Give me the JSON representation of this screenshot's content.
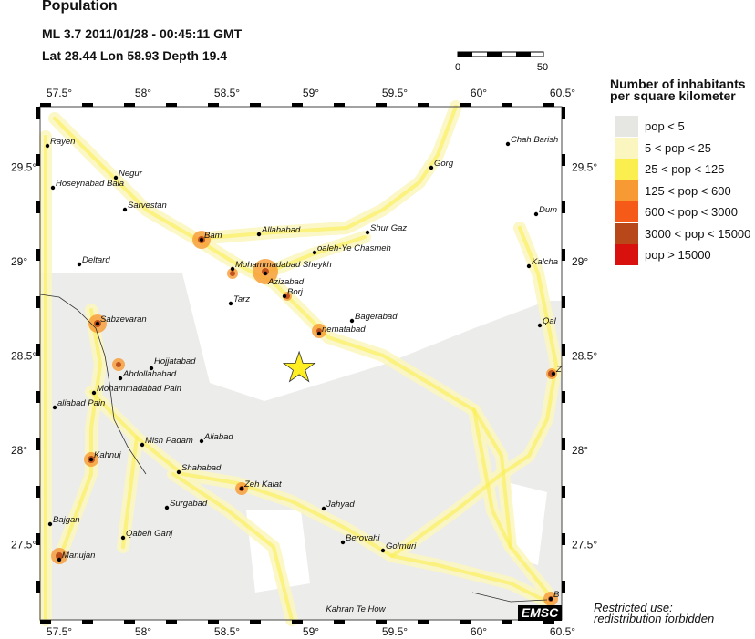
{
  "header": {
    "title": "Population",
    "event_line": "ML 3.7  2011/01/28 - 00:45:11 GMT",
    "location_line": "Lat 28.44    Lon  58.93    Depth  19.4"
  },
  "scale_bar": {
    "min_label": "0",
    "max_label": "50"
  },
  "axes": {
    "lon_labels": [
      "57.5°",
      "58°",
      "58.5°",
      "59°",
      "59.5°",
      "60°",
      "60.5°"
    ],
    "lat_labels": [
      "29.5°",
      "29°",
      "28.5°",
      "28°",
      "27.5°"
    ]
  },
  "epicenter": {
    "lat": 28.44,
    "lon": 58.93,
    "icon": "star-icon",
    "color": "#ffee22"
  },
  "legend": {
    "title_line1": "Number of inhabitants",
    "title_line2": "per square kilometer",
    "items": [
      {
        "label": "pop < 5",
        "color": "#e6e6e3"
      },
      {
        "label": "5 < pop < 25",
        "color": "#fbf6c0"
      },
      {
        "label": "25 < pop < 125",
        "color": "#fbef50"
      },
      {
        "label": "125 < pop < 600",
        "color": "#f89a33"
      },
      {
        "label": "600 < pop < 3000",
        "color": "#f65a19"
      },
      {
        "label": "3000 < pop < 15000",
        "color": "#b8481a"
      },
      {
        "label": "pop > 15000",
        "color": "#d8110f"
      }
    ]
  },
  "cities": [
    "Rayen",
    "Negur",
    "Hoseynabad Bala",
    "Sarvestan",
    "Bam",
    "Allahabad",
    "Shur Gaz",
    "oaleh-Ye Chasmeh",
    "Mohammadabad Sheykh",
    "Azizabad",
    "Deltard",
    "Borj",
    "Tarz",
    "Bagerabad",
    "nematabad",
    "Sabzevaran",
    "Hojjatabad",
    "Abdollahabad",
    "Mohammadabad Pain",
    "aliabad Pain",
    "Mish Padam",
    "Aliabad",
    "Kahnuj",
    "Shahabad",
    "Zeh Kalat",
    "Surgabad",
    "Jahyad",
    "Bajgan",
    "Qabeh Ganj",
    "Berovahi",
    "Golmuri",
    "Manujan",
    "Kahran Te How",
    "Chah Barish",
    "Gorg",
    "Dum",
    "Kalcha",
    "Qal",
    "Z",
    "B"
  ],
  "logo": "EMSC",
  "notice_line1": "Restricted use:",
  "notice_line2": "redistribution forbidden"
}
